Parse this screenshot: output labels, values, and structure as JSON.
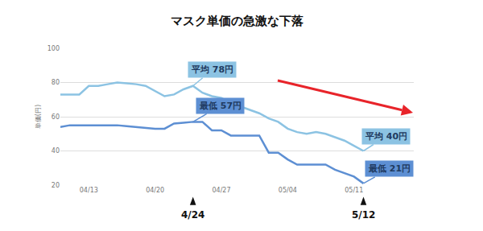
{
  "chart_data": {
    "type": "line",
    "title": "マスク単価の急激な下落",
    "y_label": "単価(円)",
    "categories": [
      null,
      null,
      null,
      "04/13",
      null,
      null,
      null,
      null,
      null,
      null,
      "04/20",
      null,
      null,
      null,
      null,
      null,
      null,
      "04/27",
      null,
      null,
      null,
      null,
      null,
      null,
      "05/04",
      null,
      null,
      null,
      null,
      null,
      null,
      "05/11",
      null
    ],
    "series": [
      {
        "name": "平均",
        "color": "#8cc3e3",
        "values": [
          73,
          73,
          73,
          78,
          78,
          79,
          80,
          79.5,
          79,
          78,
          75,
          72,
          73,
          76,
          78,
          74,
          72,
          71,
          68,
          66,
          64,
          62,
          59,
          57,
          53,
          51,
          50,
          51,
          50,
          48,
          46,
          43,
          40
        ]
      },
      {
        "name": "最低",
        "color": "#5d8fd3",
        "values": [
          54,
          55,
          55,
          55,
          55,
          55,
          55,
          54.5,
          54,
          53.5,
          53,
          53,
          56,
          56.5,
          57,
          57,
          52,
          52,
          49,
          49,
          49,
          49,
          39,
          39,
          35,
          32,
          32,
          32,
          32,
          29,
          27,
          25,
          21
        ]
      }
    ],
    "ylim": [
      20,
      100
    ],
    "yticks": [
      20,
      40,
      60,
      80,
      100
    ],
    "grid": true,
    "annotations": [
      {
        "text": "平均 78円",
        "series": "平均",
        "x": 14
      },
      {
        "text": "最低 57円",
        "series": "最低",
        "x": 14
      },
      {
        "text": "平均 40円",
        "series": "平均",
        "x": 32
      },
      {
        "text": "最低 21円",
        "series": "最低",
        "x": 32
      }
    ],
    "markers": [
      {
        "text": "4/24",
        "x": 14
      },
      {
        "text": "5/12",
        "x": 32
      }
    ]
  }
}
